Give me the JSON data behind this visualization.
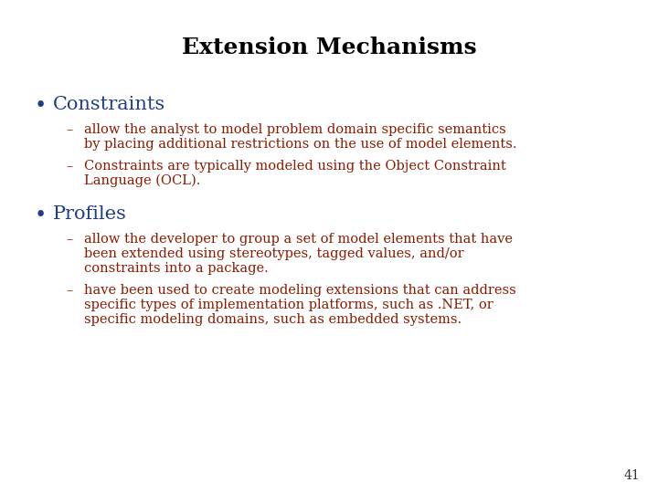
{
  "title": "Extension Mechanisms",
  "title_color": "#000000",
  "title_fontsize": 18,
  "bg_color": "#ffffff",
  "bullet_color": "#1F3C88",
  "bullet_label_color": "#1F3C88",
  "sub_bullet_color": "#8B1A00",
  "page_number": "41",
  "bullet_fontsize": 15,
  "sub_fontsize": 10.5,
  "page_num_fontsize": 10,
  "bullets": [
    {
      "label": "Constraints",
      "sub_items": [
        "allow the analyst to model problem domain specific semantics\nby placing additional restrictions on the use of model elements.",
        "Constraints are typically modeled using the Object Constraint\nLanguage (OCL)."
      ]
    },
    {
      "label": "Profiles",
      "sub_items": [
        "allow the developer to group a set of model elements that have\nbeen extended using stereotypes, tagged values, and/or\nconstraints into a package.",
        "have been used to create modeling extensions that can address\nspecific types of implementation platforms, such as .NET, or\nspecific modeling domains, such as embedded systems."
      ]
    }
  ]
}
